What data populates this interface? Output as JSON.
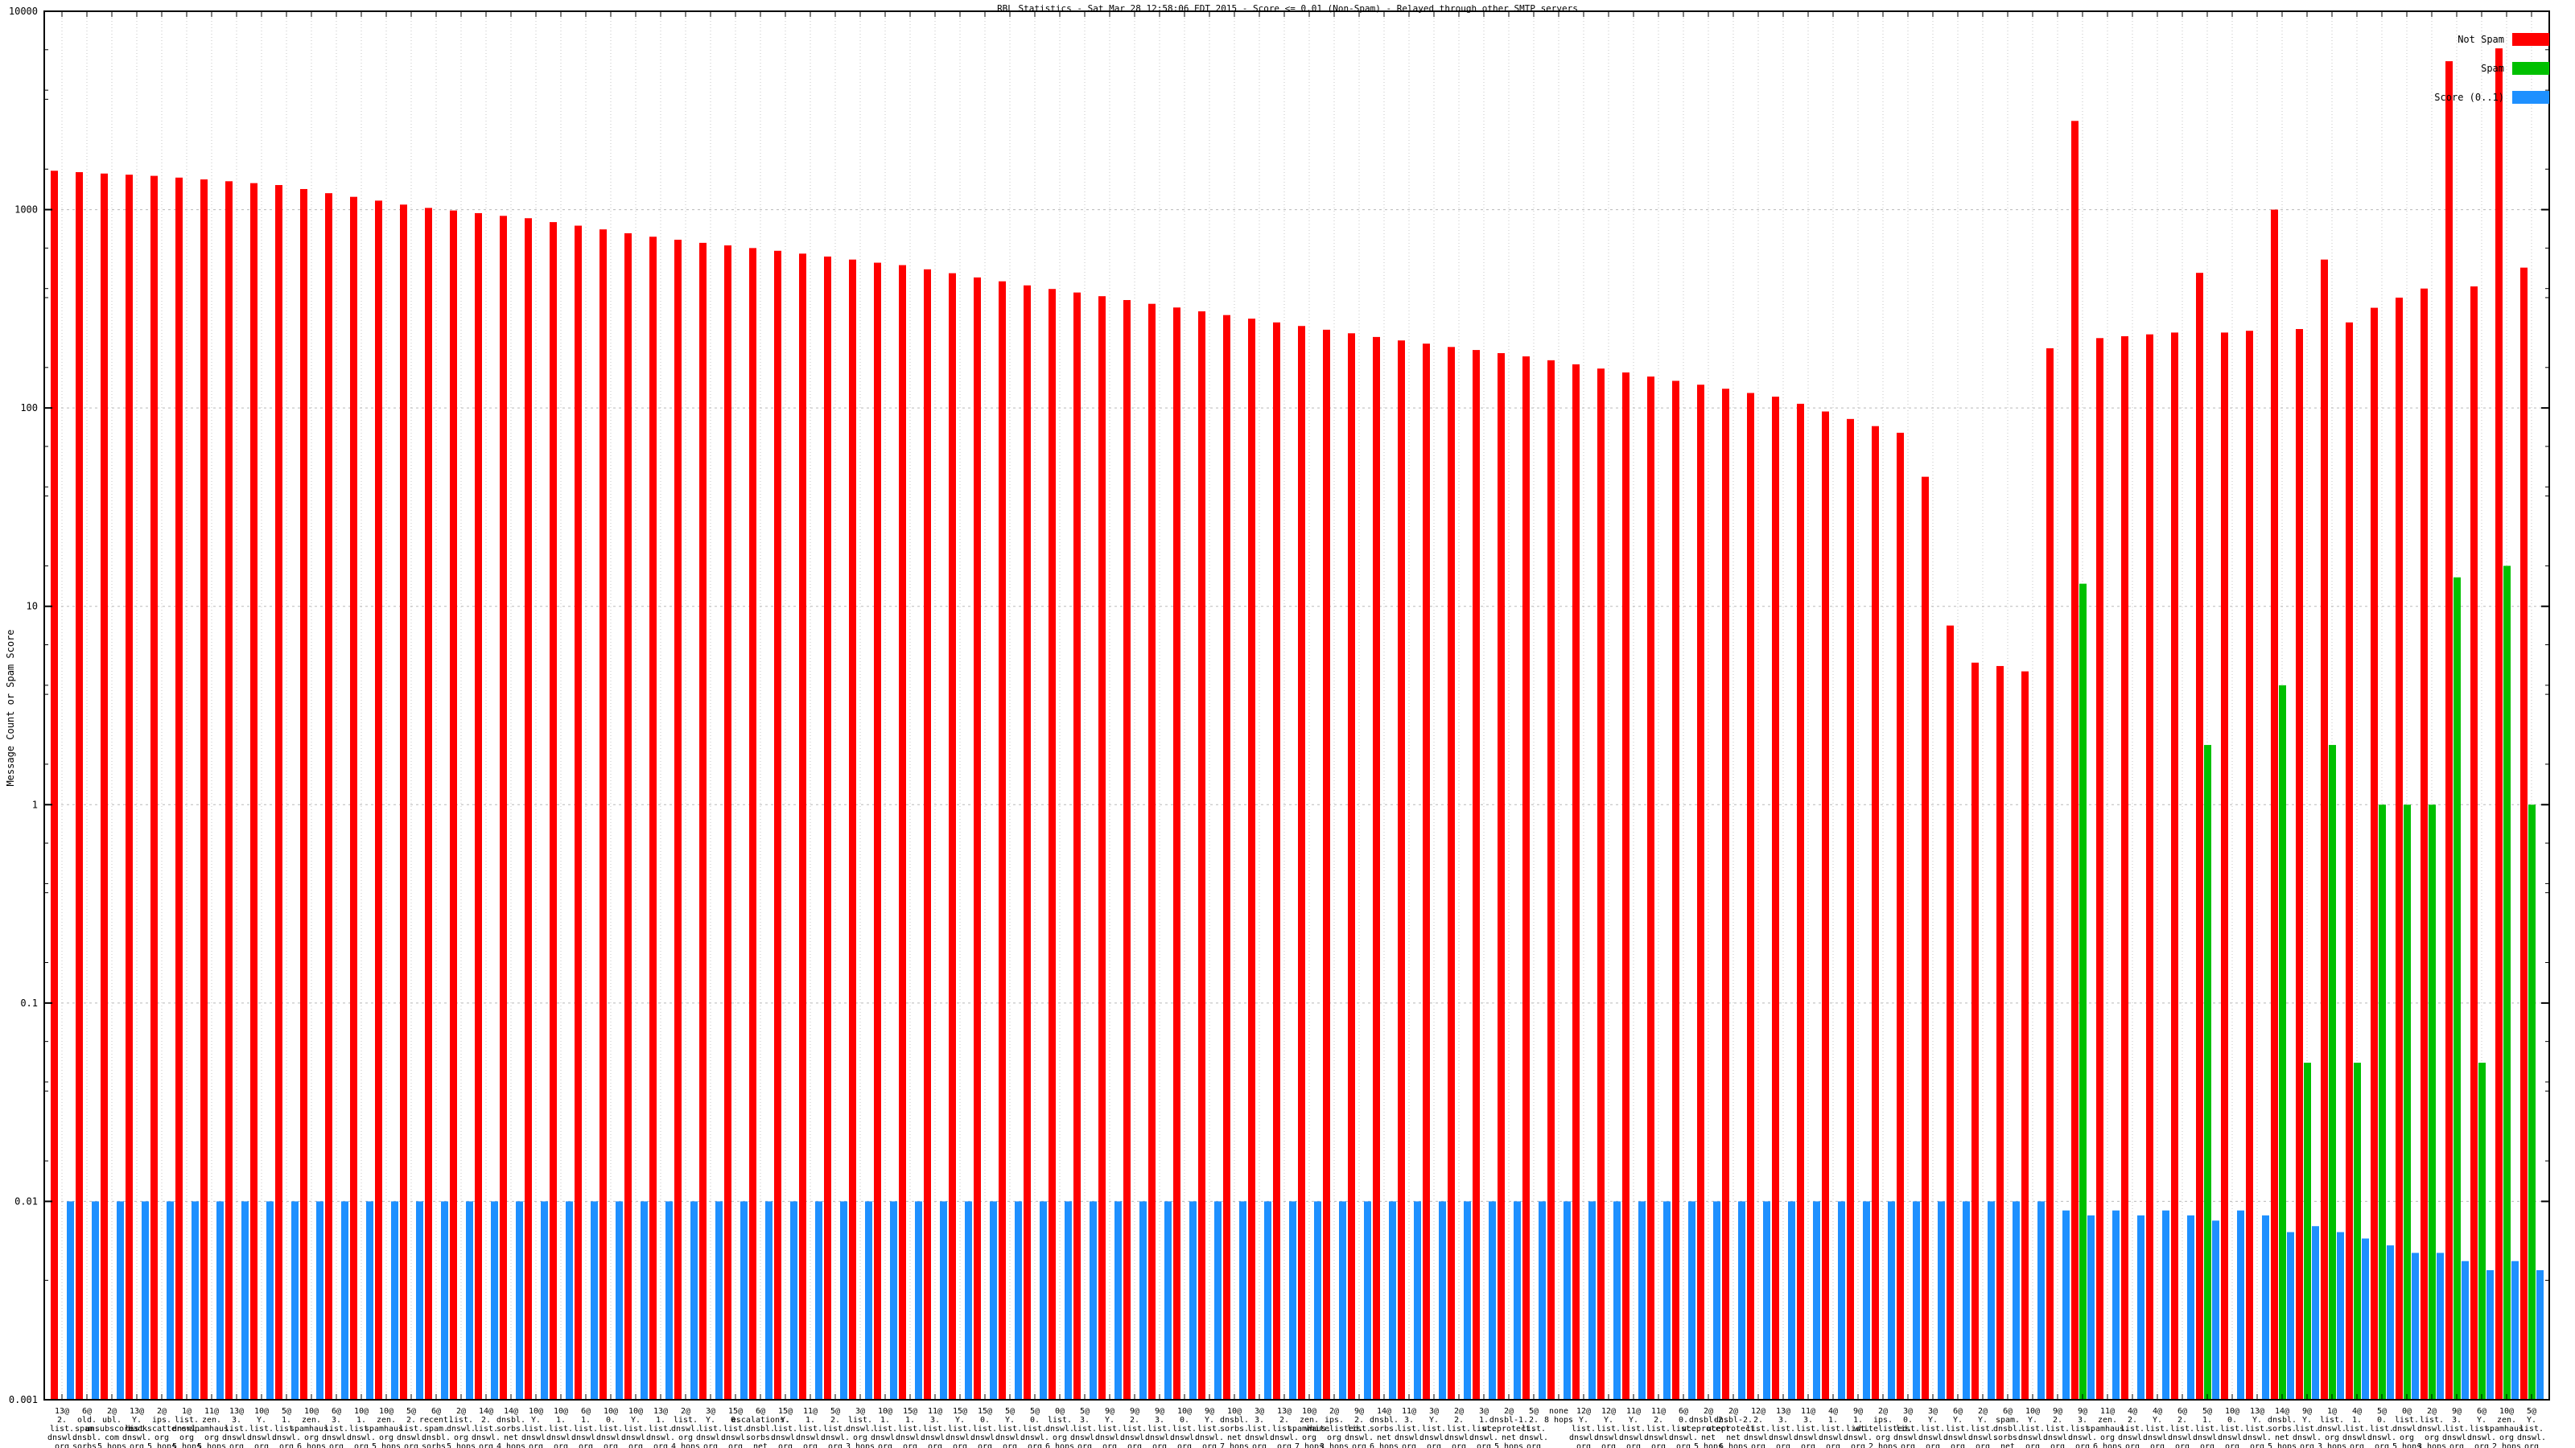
{
  "chart_data": {
    "type": "bar",
    "title": "RBL Statistics - Sat Mar 28 12:58:06 EDT 2015 - Score <= 0.01 (Non-Spam) - Relayed through other SMTP servers",
    "ylabel": "Message Count or Spam Score",
    "xlabel": "",
    "y_scale": "log",
    "ylim": [
      0.001,
      10000
    ],
    "y_ticks": [
      10000,
      1000,
      100,
      10,
      1,
      0.1,
      0.01,
      0.001
    ],
    "grid": true,
    "legend_position": "top-right",
    "legend": [
      {
        "label": "Not Spam",
        "color": "#ff0000"
      },
      {
        "label": "Spam",
        "color": "#00c000"
      },
      {
        "label": "Score (0..1)",
        "color": "#1e90ff"
      }
    ],
    "categories": [
      [
        "13@",
        "2.",
        "list.",
        "dnswl.",
        "org",
        "2 hops"
      ],
      [
        "6@",
        "old.",
        "spam.",
        "dnsbl.",
        "sorbs.",
        "net",
        "5 hops"
      ],
      [
        "2@",
        "ubl.",
        "unsubscore.",
        "com",
        "5 hops"
      ],
      [
        "13@",
        "Y.",
        "list.",
        "dnswl.",
        "org",
        "1 hop"
      ],
      [
        "2@",
        "ips.",
        "backscatterer.",
        "org",
        "5 hops"
      ],
      [
        "1@",
        "list.",
        "dnswl.",
        "org",
        "5 hops"
      ],
      [
        "11@",
        "zen.",
        "spamhaus.",
        "org",
        "5 hops"
      ],
      [
        "13@",
        "3.",
        "list.",
        "dnswl.",
        "org",
        "1 hop"
      ],
      [
        "10@",
        "Y.",
        "list.",
        "dnswl.",
        "org",
        "2 hops"
      ],
      [
        "5@",
        "1.",
        "list.",
        "dnswl.",
        "org",
        "5 hops"
      ],
      [
        "10@",
        "zen.",
        "spamhaus.",
        "org",
        "6 hops"
      ],
      [
        "6@",
        "3.",
        "list.",
        "dnswl.",
        "org",
        "1 hop"
      ],
      [
        "10@",
        "1.",
        "list.",
        "dnswl.",
        "org",
        "2 hops"
      ],
      [
        "10@",
        "zen.",
        "spamhaus.",
        "org",
        "5 hops"
      ],
      [
        "5@",
        "2.",
        "list.",
        "dnswl.",
        "org",
        "2 hops"
      ],
      [
        "6@",
        "recent.",
        "spam.",
        "dnsbl.",
        "sorbs.",
        "net",
        "5 hops"
      ],
      [
        "2@",
        "list.",
        "dnswl.",
        "org",
        "5 hops"
      ],
      [
        "14@",
        "2.",
        "list.",
        "dnswl.",
        "org",
        "1 hop"
      ],
      [
        "14@",
        "dnsbl.",
        "sorbs.",
        "net",
        "4 hops"
      ],
      [
        "10@",
        "Y.",
        "list.",
        "dnswl.",
        "org",
        "4 hops"
      ],
      [
        "10@",
        "1.",
        "list.",
        "dnswl.",
        "org",
        "4 hops"
      ],
      [
        "6@",
        "1.",
        "list.",
        "dnswl.",
        "org",
        "1 hop"
      ],
      [
        "10@",
        "0.",
        "list.",
        "dnswl.",
        "org",
        "2 hops"
      ],
      [
        "10@",
        "Y.",
        "list.",
        "dnswl.",
        "org",
        "3 hops"
      ],
      [
        "13@",
        "1.",
        "list.",
        "dnswl.",
        "org",
        "3 hops"
      ],
      [
        "2@",
        "list.",
        "dnswl.",
        "org",
        "4 hops"
      ],
      [
        "3@",
        "Y.",
        "list.",
        "dnswl.",
        "org",
        "3 hops"
      ],
      [
        "15@",
        "0.",
        "list.",
        "dnswl.",
        "org",
        "3 hops"
      ],
      [
        "6@",
        "escalations.",
        "dnsbl.",
        "sorbs.",
        "net",
        "1 hop"
      ],
      [
        "15@",
        "Y.",
        "list.",
        "dnswl.",
        "org",
        "3 hops"
      ],
      [
        "11@",
        "1.",
        "list.",
        "dnswl.",
        "org",
        "2 hops"
      ],
      [
        "5@",
        "2.",
        "list.",
        "dnswl.",
        "org",
        "5 hops"
      ],
      [
        "3@",
        "list.",
        "dnswl.",
        "org",
        "3 hops"
      ],
      [
        "10@",
        "1.",
        "list.",
        "dnswl.",
        "org",
        "3 hops"
      ],
      [
        "15@",
        "1.",
        "list.",
        "dnswl.",
        "org",
        "1 hop"
      ],
      [
        "11@",
        "3.",
        "list.",
        "dnswl.",
        "org",
        "1 hop"
      ],
      [
        "15@",
        "Y.",
        "list.",
        "dnswl.",
        "org",
        "5 hops"
      ],
      [
        "15@",
        "0.",
        "list.",
        "dnswl.",
        "org",
        "2 hops"
      ],
      [
        "5@",
        "Y.",
        "list.",
        "dnswl.",
        "org",
        "6 hops"
      ],
      [
        "5@",
        "0.",
        "list.",
        "dnswl.",
        "org",
        "6 hops"
      ],
      [
        "0@",
        "list.",
        "dnswl.",
        "org",
        "6 hops"
      ],
      [
        "5@",
        "3.",
        "list.",
        "dnswl.",
        "org",
        "1 hop"
      ],
      [
        "9@",
        "Y.",
        "list.",
        "dnswl.",
        "org",
        "5 hops"
      ],
      [
        "9@",
        "2.",
        "list.",
        "dnswl.",
        "org",
        "5 hops"
      ],
      [
        "9@",
        "3.",
        "list.",
        "dnswl.",
        "org",
        "3 hops"
      ],
      [
        "10@",
        "0.",
        "list.",
        "dnswl.",
        "org",
        "3 hops"
      ],
      [
        "9@",
        "Y.",
        "list.",
        "dnswl.",
        "org",
        "4 hops"
      ],
      [
        "10@",
        "dnsbl.",
        "sorbs.",
        "net",
        "7 hops"
      ],
      [
        "3@",
        "3.",
        "list.",
        "dnswl.",
        "org",
        "1 hop"
      ],
      [
        "13@",
        "2.",
        "list.",
        "dnswl.",
        "org",
        "1 hop"
      ],
      [
        "10@",
        "zen.",
        "spamhaus.",
        "org",
        "7 hops"
      ],
      [
        "2@",
        "ips.",
        "whitelisted.",
        "org",
        "3 hops"
      ],
      [
        "9@",
        "2.",
        "list.",
        "dnswl.",
        "org",
        "4 hops"
      ],
      [
        "14@",
        "dnsbl.",
        "sorbs.",
        "net",
        "6 hops"
      ],
      [
        "11@",
        "3.",
        "list.",
        "dnswl.",
        "org",
        "2 hops"
      ],
      [
        "3@",
        "Y.",
        "list.",
        "dnswl.",
        "org",
        "5 hops"
      ],
      [
        "2@",
        "2.",
        "list.",
        "dnswl.",
        "org",
        "1 hop"
      ],
      [
        "3@",
        "1.",
        "list.",
        "dnswl.",
        "org",
        "3 hops"
      ],
      [
        "2@",
        "dnsbl-1.",
        "uceprotect.",
        "net",
        "5 hops"
      ],
      [
        "5@",
        "2.",
        "list.",
        "dnswl.",
        "org",
        "3 hops"
      ],
      [
        "none",
        "8 hops"
      ],
      [
        "12@",
        "Y.",
        "list.",
        "dnswl.",
        "org",
        "3 hops"
      ],
      [
        "12@",
        "Y.",
        "list.",
        "dnswl.",
        "org",
        "4 hops"
      ],
      [
        "11@",
        "Y.",
        "list.",
        "dnswl.",
        "org",
        "5 hops"
      ],
      [
        "11@",
        "2.",
        "list.",
        "dnswl.",
        "org",
        "5 hops"
      ],
      [
        "6@",
        "0.",
        "list.",
        "dnswl.",
        "org",
        "1 hop"
      ],
      [
        "2@",
        "dnsbl-2.",
        "uceprotect.",
        "net",
        "5 hops"
      ],
      [
        "2@",
        "dnsbl-2.",
        "uceprotect.",
        "net",
        "6 hops"
      ],
      [
        "12@",
        "2.",
        "list.",
        "dnswl.",
        "org",
        "3 hops"
      ],
      [
        "13@",
        "3.",
        "list.",
        "dnswl.",
        "org",
        "2 hops"
      ],
      [
        "11@",
        "3.",
        "list.",
        "dnswl.",
        "org",
        "3 hops"
      ],
      [
        "4@",
        "1.",
        "list.",
        "dnswl.",
        "org",
        "2 hops"
      ],
      [
        "9@",
        "1.",
        "list.",
        "dnswl.",
        "org",
        "3 hops"
      ],
      [
        "2@",
        "ips.",
        "whitelisted.",
        "org",
        "2 hops"
      ],
      [
        "3@",
        "0.",
        "list.",
        "dnswl.",
        "org",
        "3 hops"
      ],
      [
        "3@",
        "Y.",
        "list.",
        "dnswl.",
        "org",
        "4 hops"
      ],
      [
        "6@",
        "Y.",
        "list.",
        "dnswl.",
        "org",
        "4 hops"
      ],
      [
        "2@",
        "Y.",
        "list.",
        "dnswl.",
        "org",
        "2 hops"
      ],
      [
        "6@",
        "spam.",
        "dnsbl.",
        "sorbs.",
        "net",
        "6 hops"
      ],
      [
        "10@",
        "Y.",
        "list.",
        "dnswl.",
        "org",
        "5 hops"
      ],
      [
        "9@",
        "2.",
        "list.",
        "dnswl.",
        "org",
        "3 hops"
      ],
      [
        "9@",
        "3.",
        "list.",
        "dnswl.",
        "org",
        "2 hops"
      ],
      [
        "11@",
        "zen.",
        "spamhaus.",
        "org",
        "6 hops"
      ],
      [
        "4@",
        "2.",
        "list.",
        "dnswl.",
        "org",
        "2 hops"
      ],
      [
        "4@",
        "Y.",
        "list.",
        "dnswl.",
        "org",
        "2 hops"
      ],
      [
        "6@",
        "2.",
        "list.",
        "dnswl.",
        "org",
        "1 hop"
      ],
      [
        "5@",
        "1.",
        "list.",
        "dnswl.",
        "org",
        "3 hops"
      ],
      [
        "10@",
        "0.",
        "list.",
        "dnswl.",
        "org",
        "1 hop"
      ],
      [
        "13@",
        "Y.",
        "list.",
        "dnswl.",
        "org",
        "2 hops"
      ],
      [
        "14@",
        "dnsbl.",
        "sorbs.",
        "net",
        "5 hops"
      ],
      [
        "9@",
        "Y.",
        "list.",
        "dnswl.",
        "org",
        "3 hops"
      ],
      [
        "1@",
        "list.",
        "dnswl.",
        "org",
        "3 hops"
      ],
      [
        "4@",
        "1.",
        "list.",
        "dnswl.",
        "org",
        "1 hop"
      ],
      [
        "5@",
        "0.",
        "list.",
        "dnswl.",
        "org",
        "5 hops"
      ],
      [
        "0@",
        "list.",
        "dnswl.",
        "org",
        "5 hops"
      ],
      [
        "2@",
        "list.",
        "dnswl.",
        "org",
        "3 hops"
      ],
      [
        "9@",
        "3.",
        "list.",
        "dnswl.",
        "org",
        "1 hop"
      ],
      [
        "6@",
        "Y.",
        "list.",
        "dnswl.",
        "org",
        "1 hop"
      ],
      [
        "10@",
        "zen.",
        "spamhaus.",
        "org",
        "2 hops"
      ],
      [
        "5@",
        "Y.",
        "list.",
        "dnswl.",
        "org",
        "5 hops"
      ]
    ],
    "series": [
      {
        "name": "Not Spam",
        "color": "#ff0000",
        "values": [
          1570,
          1545,
          1520,
          1500,
          1480,
          1450,
          1420,
          1390,
          1360,
          1330,
          1270,
          1210,
          1160,
          1110,
          1060,
          1020,
          990,
          960,
          930,
          905,
          865,
          830,
          795,
          760,
          730,
          705,
          680,
          660,
          640,
          620,
          600,
          580,
          560,
          540,
          525,
          500,
          478,
          455,
          435,
          415,
          398,
          382,
          366,
          350,
          335,
          321,
          307,
          294,
          282,
          270,
          259,
          248,
          238,
          228,
          219,
          211,
          203,
          196,
          189,
          182,
          174,
          166,
          158,
          151,
          144,
          137,
          131,
          125,
          119,
          114,
          105,
          96,
          88,
          81,
          75,
          45,
          8,
          5.2,
          5,
          4.7,
          200,
          2800,
          225,
          230,
          235,
          240,
          480,
          240,
          245,
          1000,
          250,
          560,
          270,
          320,
          360,
          400,
          5600,
          410,
          6500,
          510
        ]
      },
      {
        "name": "Spam",
        "color": "#00c000",
        "values": [
          0,
          0,
          0,
          0,
          0,
          0,
          0,
          0,
          0,
          0,
          0,
          0,
          0,
          0,
          0,
          0,
          0,
          0,
          0,
          0,
          0,
          0,
          0,
          0,
          0,
          0,
          0,
          0,
          0,
          0,
          0,
          0,
          0,
          0,
          0,
          0,
          0,
          0,
          0,
          0,
          0,
          0,
          0,
          0,
          0,
          0,
          0,
          0,
          0,
          0,
          0,
          0,
          0,
          0,
          0,
          0,
          0,
          0,
          0,
          0,
          0,
          0,
          0,
          0,
          0,
          0,
          0,
          0,
          0,
          0,
          0,
          0,
          0,
          0,
          0,
          0,
          0,
          0,
          0,
          0,
          0,
          13,
          0,
          0,
          0,
          0,
          2,
          0,
          0,
          4,
          0.05,
          2,
          0.05,
          1,
          1,
          1,
          14,
          0.05,
          16,
          1
        ]
      },
      {
        "name": "Score (0..1)",
        "color": "#1e90ff",
        "values": [
          0.01,
          0.01,
          0.01,
          0.01,
          0.01,
          0.01,
          0.01,
          0.01,
          0.01,
          0.01,
          0.01,
          0.01,
          0.01,
          0.01,
          0.01,
          0.01,
          0.01,
          0.01,
          0.01,
          0.01,
          0.01,
          0.01,
          0.01,
          0.01,
          0.01,
          0.01,
          0.01,
          0.01,
          0.01,
          0.01,
          0.01,
          0.01,
          0.01,
          0.01,
          0.01,
          0.01,
          0.01,
          0.01,
          0.01,
          0.01,
          0.01,
          0.01,
          0.01,
          0.01,
          0.01,
          0.01,
          0.01,
          0.01,
          0.01,
          0.01,
          0.01,
          0.01,
          0.01,
          0.01,
          0.01,
          0.01,
          0.01,
          0.01,
          0.01,
          0.01,
          0.01,
          0.01,
          0.01,
          0.01,
          0.01,
          0.01,
          0.01,
          0.01,
          0.01,
          0.01,
          0.01,
          0.01,
          0.01,
          0.01,
          0.01,
          0.01,
          0.01,
          0.01,
          0.01,
          0.01,
          0.009,
          0.0085,
          0.009,
          0.0085,
          0.009,
          0.0085,
          0.008,
          0.009,
          0.0085,
          0.007,
          0.0075,
          0.007,
          0.0065,
          0.006,
          0.0055,
          0.0055,
          0.005,
          0.0045,
          0.005,
          0.0045
        ]
      }
    ]
  }
}
